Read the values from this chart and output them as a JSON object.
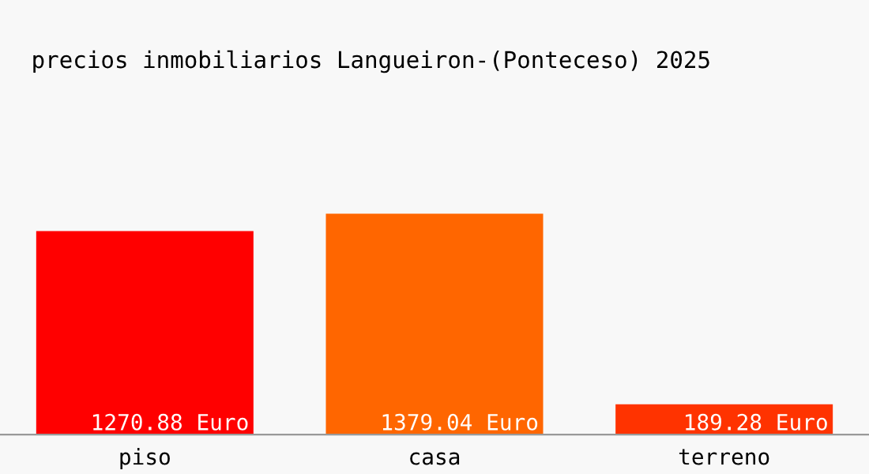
{
  "chart_data": {
    "type": "bar",
    "title": "precios inmobiliarios Langueiron-(Ponteceso) 2025",
    "categories": [
      "piso",
      "casa",
      "terreno"
    ],
    "values": [
      1270.88,
      1379.04,
      189.28
    ],
    "colors": [
      "#ff0000",
      "#ff6600",
      "#ff3300"
    ],
    "value_labels": [
      "1270.88 Euro",
      "1379.04 Euro",
      "189.28 Euro"
    ],
    "grid": false,
    "legend": false
  }
}
